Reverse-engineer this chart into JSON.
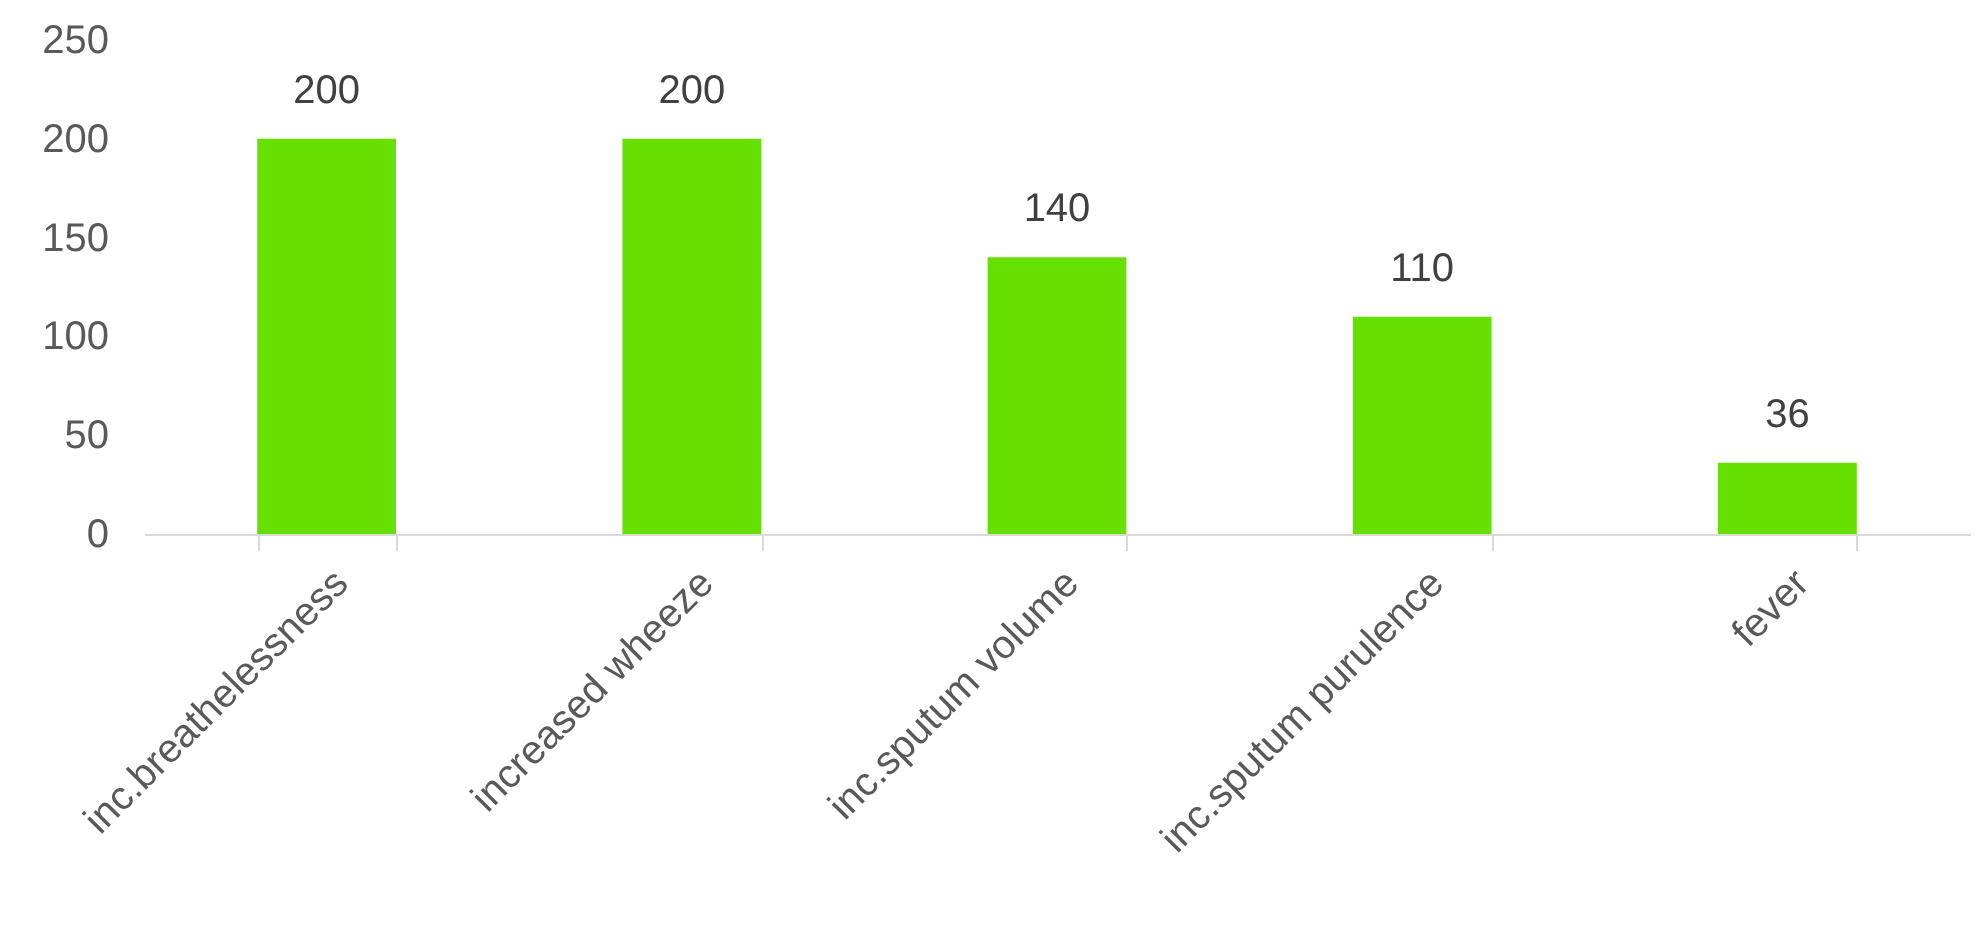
{
  "chart_data": {
    "type": "bar",
    "categories": [
      "inc.breathelessness",
      "increased wheeze",
      "inc.sputum volume",
      "inc.sputum purulence",
      "fever"
    ],
    "values": [
      200,
      200,
      140,
      110,
      36
    ],
    "color": "#66e000",
    "ylim": [
      0,
      250
    ],
    "yticks": [
      0,
      50,
      100,
      150,
      200,
      250
    ],
    "data_labels": true
  }
}
